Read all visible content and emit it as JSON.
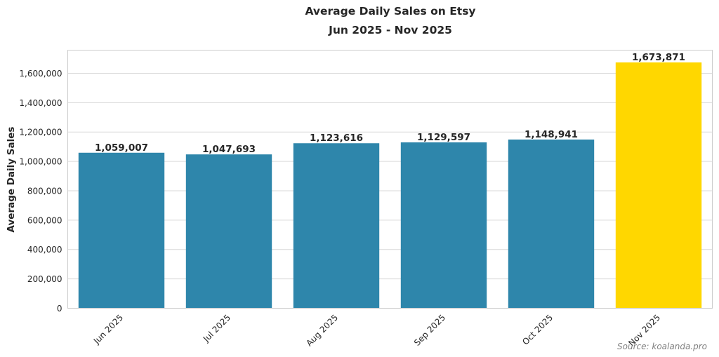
{
  "chart_data": {
    "type": "bar",
    "title": "Average Daily Sales on Etsy",
    "subtitle": "Jun 2025 - Nov 2025",
    "xlabel": "",
    "ylabel": "Average Daily Sales",
    "categories": [
      "Jun 2025",
      "Jul 2025",
      "Aug 2025",
      "Sep 2025",
      "Oct 2025",
      "Nov 2025"
    ],
    "values": [
      1059007,
      1047693,
      1123616,
      1129597,
      1148941,
      1673871
    ],
    "data_labels": [
      "1,059,007",
      "1,047,693",
      "1,123,616",
      "1,129,597",
      "1,148,941",
      "1,673,871"
    ],
    "colors": [
      "#2e86ab",
      "#2e86ab",
      "#2e86ab",
      "#2e86ab",
      "#2e86ab",
      "#ffd700"
    ],
    "yticks": [
      0,
      200000,
      400000,
      600000,
      800000,
      1000000,
      1200000,
      1400000,
      1600000
    ],
    "ytick_labels": [
      "0",
      "200,000",
      "400,000",
      "600,000",
      "800,000",
      "1,000,000",
      "1,200,000",
      "1,400,000",
      "1,600,000"
    ],
    "ylim": [
      0,
      1757565
    ],
    "grid": "horizontal",
    "source": "Source: koalanda.pro"
  }
}
